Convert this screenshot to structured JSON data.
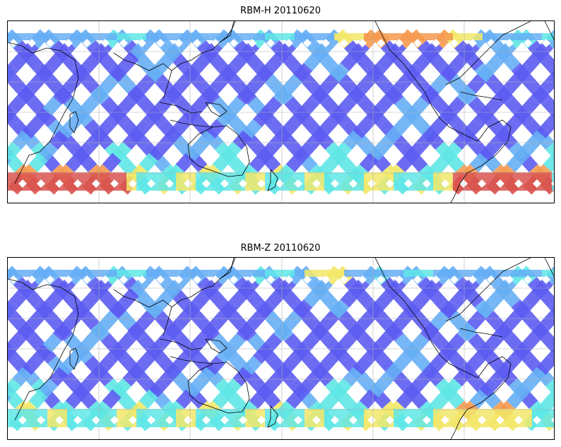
{
  "maps": [
    {
      "title": "RBM-H 20110620",
      "intensity": {
        "north_band_hot": [
          0.6,
          0.86
        ],
        "south_hot": [
          0.0,
          0.22,
          0.82,
          1.0
        ],
        "base": "low"
      },
      "colors": {
        "low": "#5c5cf2",
        "mid": "#66aef5",
        "cyan": "#5fe6e6",
        "yellow": "#f2e86a",
        "orange": "#f59a50",
        "red": "#d9534f"
      }
    },
    {
      "title": "RBM-Z 20110620",
      "intensity": {
        "north_band_hot": [
          0.55,
          0.62
        ],
        "south_hot": [
          0.78,
          0.95
        ],
        "base": "low"
      },
      "colors": {
        "low": "#5c5cf2",
        "mid": "#66aef5",
        "cyan": "#5fe6e6",
        "yellow": "#f2e86a",
        "orange": "#f59a50",
        "red": "#d9534f"
      }
    }
  ]
}
